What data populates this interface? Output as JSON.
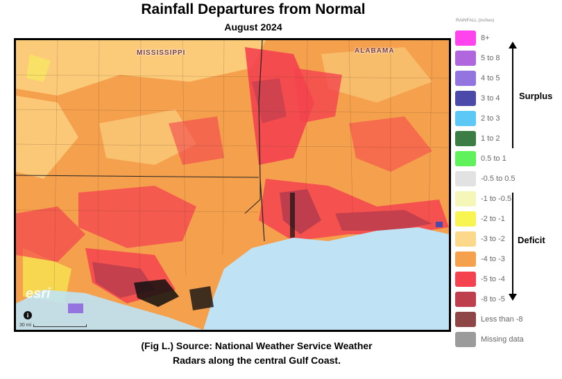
{
  "header": {
    "title": "Rainfall Departures from Normal",
    "subtitle": "August 2024"
  },
  "map": {
    "state_labels": [
      "MISSISSIPPI",
      "ALABAMA"
    ],
    "attribution": "esri",
    "scale_label": "30 mi",
    "info_glyph": "i",
    "water_color": "#bfe3f5"
  },
  "legend": {
    "title": "RAINFALL (inches)",
    "items": [
      {
        "label": "8+",
        "color": "#ff44ee"
      },
      {
        "label": "5 to 8",
        "color": "#b066dd"
      },
      {
        "label": "4 to 5",
        "color": "#9475e0"
      },
      {
        "label": "3 to 4",
        "color": "#4b4aa8"
      },
      {
        "label": "2 to 3",
        "color": "#5bc8f5"
      },
      {
        "label": "1 to 2",
        "color": "#3c7d45"
      },
      {
        "label": "0.5 to 1",
        "color": "#5ff25a"
      },
      {
        "label": "-0.5 to 0.5",
        "color": "#e2e2e2"
      },
      {
        "label": "-1 to -0.5",
        "color": "#f4f7b8"
      },
      {
        "label": "-2 to -1",
        "color": "#f8f552"
      },
      {
        "label": "-3 to -2",
        "color": "#fcd98a"
      },
      {
        "label": "-4 to -3",
        "color": "#f5a04c"
      },
      {
        "label": "-5 to -4",
        "color": "#f4434f"
      },
      {
        "label": "-8 to -5",
        "color": "#bf3e4e"
      },
      {
        "label": "Less than -8",
        "color": "#8e4646"
      },
      {
        "label": "Missing data",
        "color": "#9b9b9b"
      }
    ],
    "surplus_label": "Surplus",
    "deficit_label": "Deficit"
  },
  "caption": {
    "line1": "(Fig L.) Source: National Weather Service Weather",
    "line2": "Radars along the central Gulf Coast."
  }
}
